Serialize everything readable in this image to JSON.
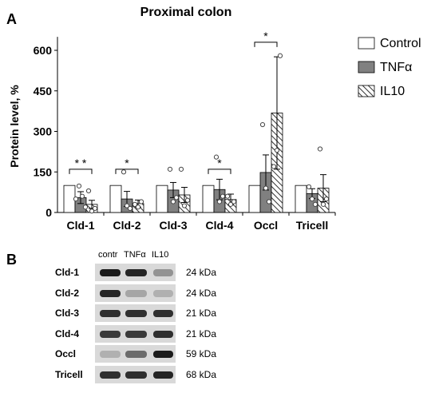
{
  "panel_a": {
    "letter": "A"
  },
  "panel_b": {
    "letter": "B"
  },
  "chart_data": {
    "type": "bar",
    "title": "Proximal colon",
    "ylabel": "Protein level, %",
    "xlabel": "",
    "ylim": [
      0,
      650
    ],
    "yticks": [
      0,
      150,
      300,
      450,
      600
    ],
    "categories": [
      "Cld-1",
      "Cld-2",
      "Cld-3",
      "Cld-4",
      "Occl",
      "Tricell"
    ],
    "series": [
      {
        "name": "Control",
        "color": "#ffffff",
        "pattern": "none",
        "values": [
          100,
          100,
          100,
          100,
          100,
          100
        ],
        "errors": [
          0,
          0,
          0,
          0,
          0,
          0
        ]
      },
      {
        "name": "TNFα",
        "color": "#808080",
        "pattern": "solid",
        "values": [
          55,
          50,
          83,
          85,
          148,
          70
        ],
        "errors": [
          22,
          28,
          28,
          38,
          65,
          18
        ]
      },
      {
        "name": "IL10",
        "color": "#ffffff",
        "pattern": "hatch",
        "values": [
          30,
          33,
          65,
          48,
          368,
          90
        ],
        "errors": [
          15,
          13,
          28,
          20,
          208,
          50
        ]
      }
    ],
    "points": [
      {
        "cat": 0,
        "series": 1,
        "y": [
          50,
          98,
          60,
          20
        ]
      },
      {
        "cat": 0,
        "series": 2,
        "y": [
          80,
          5,
          15
        ]
      },
      {
        "cat": 1,
        "series": 1,
        "y": [
          150,
          25,
          15
        ]
      },
      {
        "cat": 1,
        "series": 2,
        "y": [
          30,
          20,
          40
        ]
      },
      {
        "cat": 2,
        "series": 1,
        "y": [
          160,
          40,
          55
        ]
      },
      {
        "cat": 2,
        "series": 2,
        "y": [
          160,
          25,
          45
        ]
      },
      {
        "cat": 3,
        "series": 1,
        "y": [
          205,
          40,
          60
        ]
      },
      {
        "cat": 3,
        "series": 2,
        "y": [
          60,
          30,
          40
        ]
      },
      {
        "cat": 4,
        "series": 1,
        "y": [
          325,
          90,
          40
        ]
      },
      {
        "cat": 4,
        "series": 2,
        "y": [
          170,
          230,
          580
        ]
      },
      {
        "cat": 5,
        "series": 1,
        "y": [
          95,
          50,
          30
        ]
      },
      {
        "cat": 5,
        "series": 2,
        "y": [
          235,
          30,
          50
        ]
      }
    ],
    "significance": [
      {
        "cat": 0,
        "label": "* *",
        "y": 160
      },
      {
        "cat": 1,
        "label": "*",
        "y": 160
      },
      {
        "cat": 3,
        "label": "*",
        "y": 160
      },
      {
        "cat": 4,
        "label": "*",
        "y": 630
      }
    ],
    "legend": "top-right"
  },
  "blot": {
    "lanes": [
      "contr",
      "TNFα",
      "IL10"
    ],
    "rows": [
      {
        "protein": "Cld-1",
        "kda": "24 kDa",
        "intensity": [
          0.95,
          0.9,
          0.35
        ]
      },
      {
        "protein": "Cld-2",
        "kda": "24 kDa",
        "intensity": [
          0.9,
          0.25,
          0.2
        ]
      },
      {
        "protein": "Cld-3",
        "kda": "21 kDa",
        "intensity": [
          0.85,
          0.85,
          0.85
        ]
      },
      {
        "protein": "Cld-4",
        "kda": "21 kDa",
        "intensity": [
          0.8,
          0.8,
          0.85
        ]
      },
      {
        "protein": "Occl",
        "kda": "59 kDa",
        "intensity": [
          0.2,
          0.55,
          0.95
        ]
      },
      {
        "protein": "Tricell",
        "kda": "68 kDa",
        "intensity": [
          0.85,
          0.85,
          0.9
        ]
      }
    ]
  }
}
